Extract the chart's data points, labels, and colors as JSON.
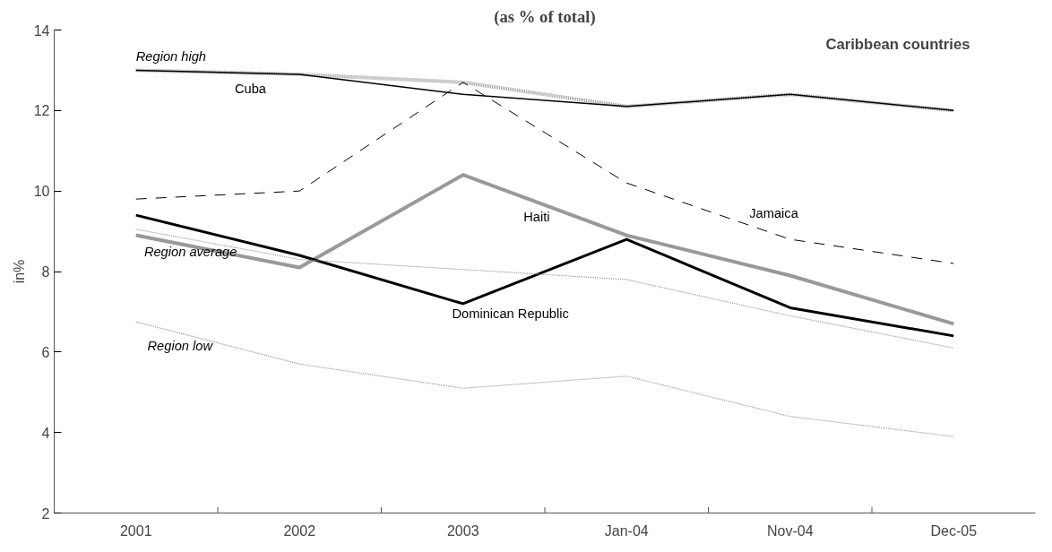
{
  "chart_data": {
    "type": "line",
    "title": "(as % of total)",
    "subtitle": "Caribbean countries",
    "ylabel": "in%",
    "categories": [
      "2001",
      "2002",
      "2003",
      "Jan-04",
      "Nov-04",
      "Dec-05"
    ],
    "ylim": [
      2,
      14
    ],
    "yticks": [
      2,
      4,
      6,
      8,
      10,
      12,
      14
    ],
    "grid": false,
    "legend": false,
    "series": [
      {
        "name": "Region high",
        "color": "#999999",
        "line_style": "dotted",
        "values": [
          13.0,
          12.9,
          12.7,
          12.1,
          12.4,
          12.0
        ]
      },
      {
        "name": "Cuba",
        "color": "#000000",
        "line_style": "solid",
        "values": [
          13.0,
          12.9,
          12.4,
          12.1,
          12.4,
          12.0
        ]
      },
      {
        "name": "Jamaica",
        "color": "#000000",
        "line_style": "dashed",
        "values": [
          9.8,
          10.0,
          12.7,
          10.2,
          8.8,
          8.2
        ]
      },
      {
        "name": "Haiti",
        "color": "#999999",
        "line_style": "solid",
        "values": [
          8.9,
          8.1,
          10.4,
          8.9,
          7.9,
          6.7
        ]
      },
      {
        "name": "Dominican Republic",
        "color": "#000000",
        "line_style": "solid",
        "values": [
          9.4,
          8.4,
          7.2,
          8.8,
          7.1,
          6.4
        ]
      },
      {
        "name": "Region average",
        "color": "#999999",
        "line_style": "dotted",
        "values": [
          9.05,
          8.3,
          8.05,
          7.8,
          6.9,
          6.1
        ]
      },
      {
        "name": "Region low",
        "color": "#999999",
        "line_style": "dotted",
        "values": [
          6.75,
          5.7,
          5.1,
          5.4,
          4.4,
          3.9
        ]
      }
    ]
  }
}
